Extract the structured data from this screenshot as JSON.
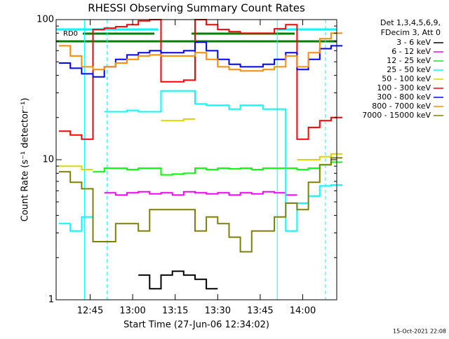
{
  "chart_data": {
    "type": "line",
    "title": "RHESSI Observing Summary Count Rates",
    "x_label": "Start Time (27-Jun-06 12:34:02)",
    "y_label": "Count Rate (s⁻¹ detector⁻¹)",
    "legend_header": [
      "Det 1,3,4,5,6,9,",
      "FDecim 3, Att 0"
    ],
    "footer": "15-Oct-2021 22:08",
    "annotations": [
      "RD0"
    ],
    "log_y": true,
    "x": [
      "12:34",
      "12:38",
      "12:42",
      "12:46",
      "12:50",
      "12:54",
      "12:58",
      "13:02",
      "13:06",
      "13:10",
      "13:14",
      "13:18",
      "13:22",
      "13:26",
      "13:30",
      "13:34",
      "13:38",
      "13:42",
      "13:46",
      "13:50",
      "13:54",
      "13:58",
      "14:02",
      "14:06",
      "14:10"
    ],
    "xlim": [
      "12:33",
      "14:12"
    ],
    "xticks": [
      "12:45",
      "13:00",
      "13:15",
      "13:30",
      "13:45",
      "14:00"
    ],
    "ylim": [
      1,
      100
    ],
    "yticks": [
      1,
      10,
      100
    ],
    "yminorticks": [
      2,
      3,
      4,
      5,
      6,
      7,
      8,
      9,
      20,
      30,
      40,
      50,
      60,
      70,
      80,
      90
    ],
    "vlines": [
      {
        "x": "12:43",
        "color": "#00ffff",
        "dashed": false
      },
      {
        "x": "12:51",
        "color": "#00ffff",
        "dashed": true
      },
      {
        "x": "13:51",
        "color": "#00ffff",
        "dashed": false
      },
      {
        "x": "14:08",
        "color": "#00ffff",
        "dashed": true
      }
    ],
    "series": [
      {
        "name": "3 - 6 keV",
        "color": "#000000",
        "values": [
          null,
          null,
          null,
          null,
          null,
          null,
          null,
          1.5,
          1.2,
          1.5,
          1.6,
          1.5,
          1.4,
          1.2,
          null,
          null,
          null,
          null,
          null,
          null,
          null,
          null,
          null,
          null,
          null
        ]
      },
      {
        "name": "6 - 12 keV",
        "color": "#ff00ff",
        "values": [
          null,
          null,
          null,
          null,
          5.8,
          5.6,
          5.8,
          5.9,
          5.7,
          5.8,
          5.6,
          5.9,
          5.8,
          5.7,
          5.8,
          5.6,
          5.8,
          5.7,
          5.9,
          5.8,
          5.6,
          null,
          null,
          null,
          null
        ]
      },
      {
        "name": "12 - 25 keV",
        "color": "#00ff00",
        "values": [
          null,
          null,
          null,
          8.2,
          8.7,
          8.7,
          8.5,
          8.7,
          8.7,
          7.8,
          7.9,
          8.0,
          8.7,
          8.5,
          8.7,
          8.6,
          8.7,
          8.5,
          8.7,
          8.7,
          8.7,
          8.5,
          8.7,
          9.2,
          9.6
        ]
      },
      {
        "name": "25 - 50 keV",
        "color": "#00ffff",
        "values": [
          3.5,
          3.1,
          3.9,
          null,
          22,
          22,
          22.5,
          22,
          22,
          31,
          31,
          31,
          25,
          24.5,
          24.5,
          23,
          24.5,
          24.5,
          23,
          23,
          3.1,
          4.9,
          5.5,
          6.5,
          6.6
        ]
      },
      {
        "name": "50 - 100 keV",
        "color": "#d8d800",
        "values": [
          9,
          9,
          8.5,
          null,
          null,
          null,
          null,
          null,
          null,
          19,
          19,
          19.5,
          null,
          null,
          null,
          null,
          null,
          null,
          null,
          null,
          null,
          10,
          10,
          10.5,
          11
        ]
      },
      {
        "name": "100 - 300 keV",
        "color": "#ff0000",
        "values": [
          16,
          15,
          14,
          85,
          87,
          89,
          92,
          98,
          100,
          36,
          36,
          37,
          100,
          92,
          85,
          82,
          80,
          80,
          80,
          86,
          92,
          14,
          17,
          19,
          20
        ]
      },
      {
        "name": "300 - 800 keV",
        "color": "#0000ff",
        "values": [
          49,
          45,
          41,
          39,
          46,
          52,
          56,
          58,
          60,
          58,
          58,
          60,
          69,
          60,
          52,
          48,
          46,
          46,
          48,
          52,
          58,
          44,
          52,
          62,
          65
        ]
      },
      {
        "name": "800 - 7000 keV",
        "color": "#ff8c00",
        "values": [
          65,
          55,
          46,
          44,
          46,
          49,
          52,
          55,
          56,
          55,
          55,
          55,
          58,
          52,
          46,
          44,
          43,
          43,
          44,
          46,
          55,
          46,
          58,
          73,
          80
        ]
      },
      {
        "name": "7000 - 15000 keV",
        "color": "#808000",
        "values": [
          8.2,
          6.9,
          6.2,
          2.6,
          2.6,
          3.5,
          3.5,
          3.1,
          4.4,
          4.4,
          4.4,
          4.4,
          3.1,
          3.9,
          3.5,
          2.8,
          2.2,
          3.1,
          3.1,
          3.9,
          4.9,
          4.4,
          6.9,
          9.2,
          10.3
        ]
      }
    ]
  }
}
